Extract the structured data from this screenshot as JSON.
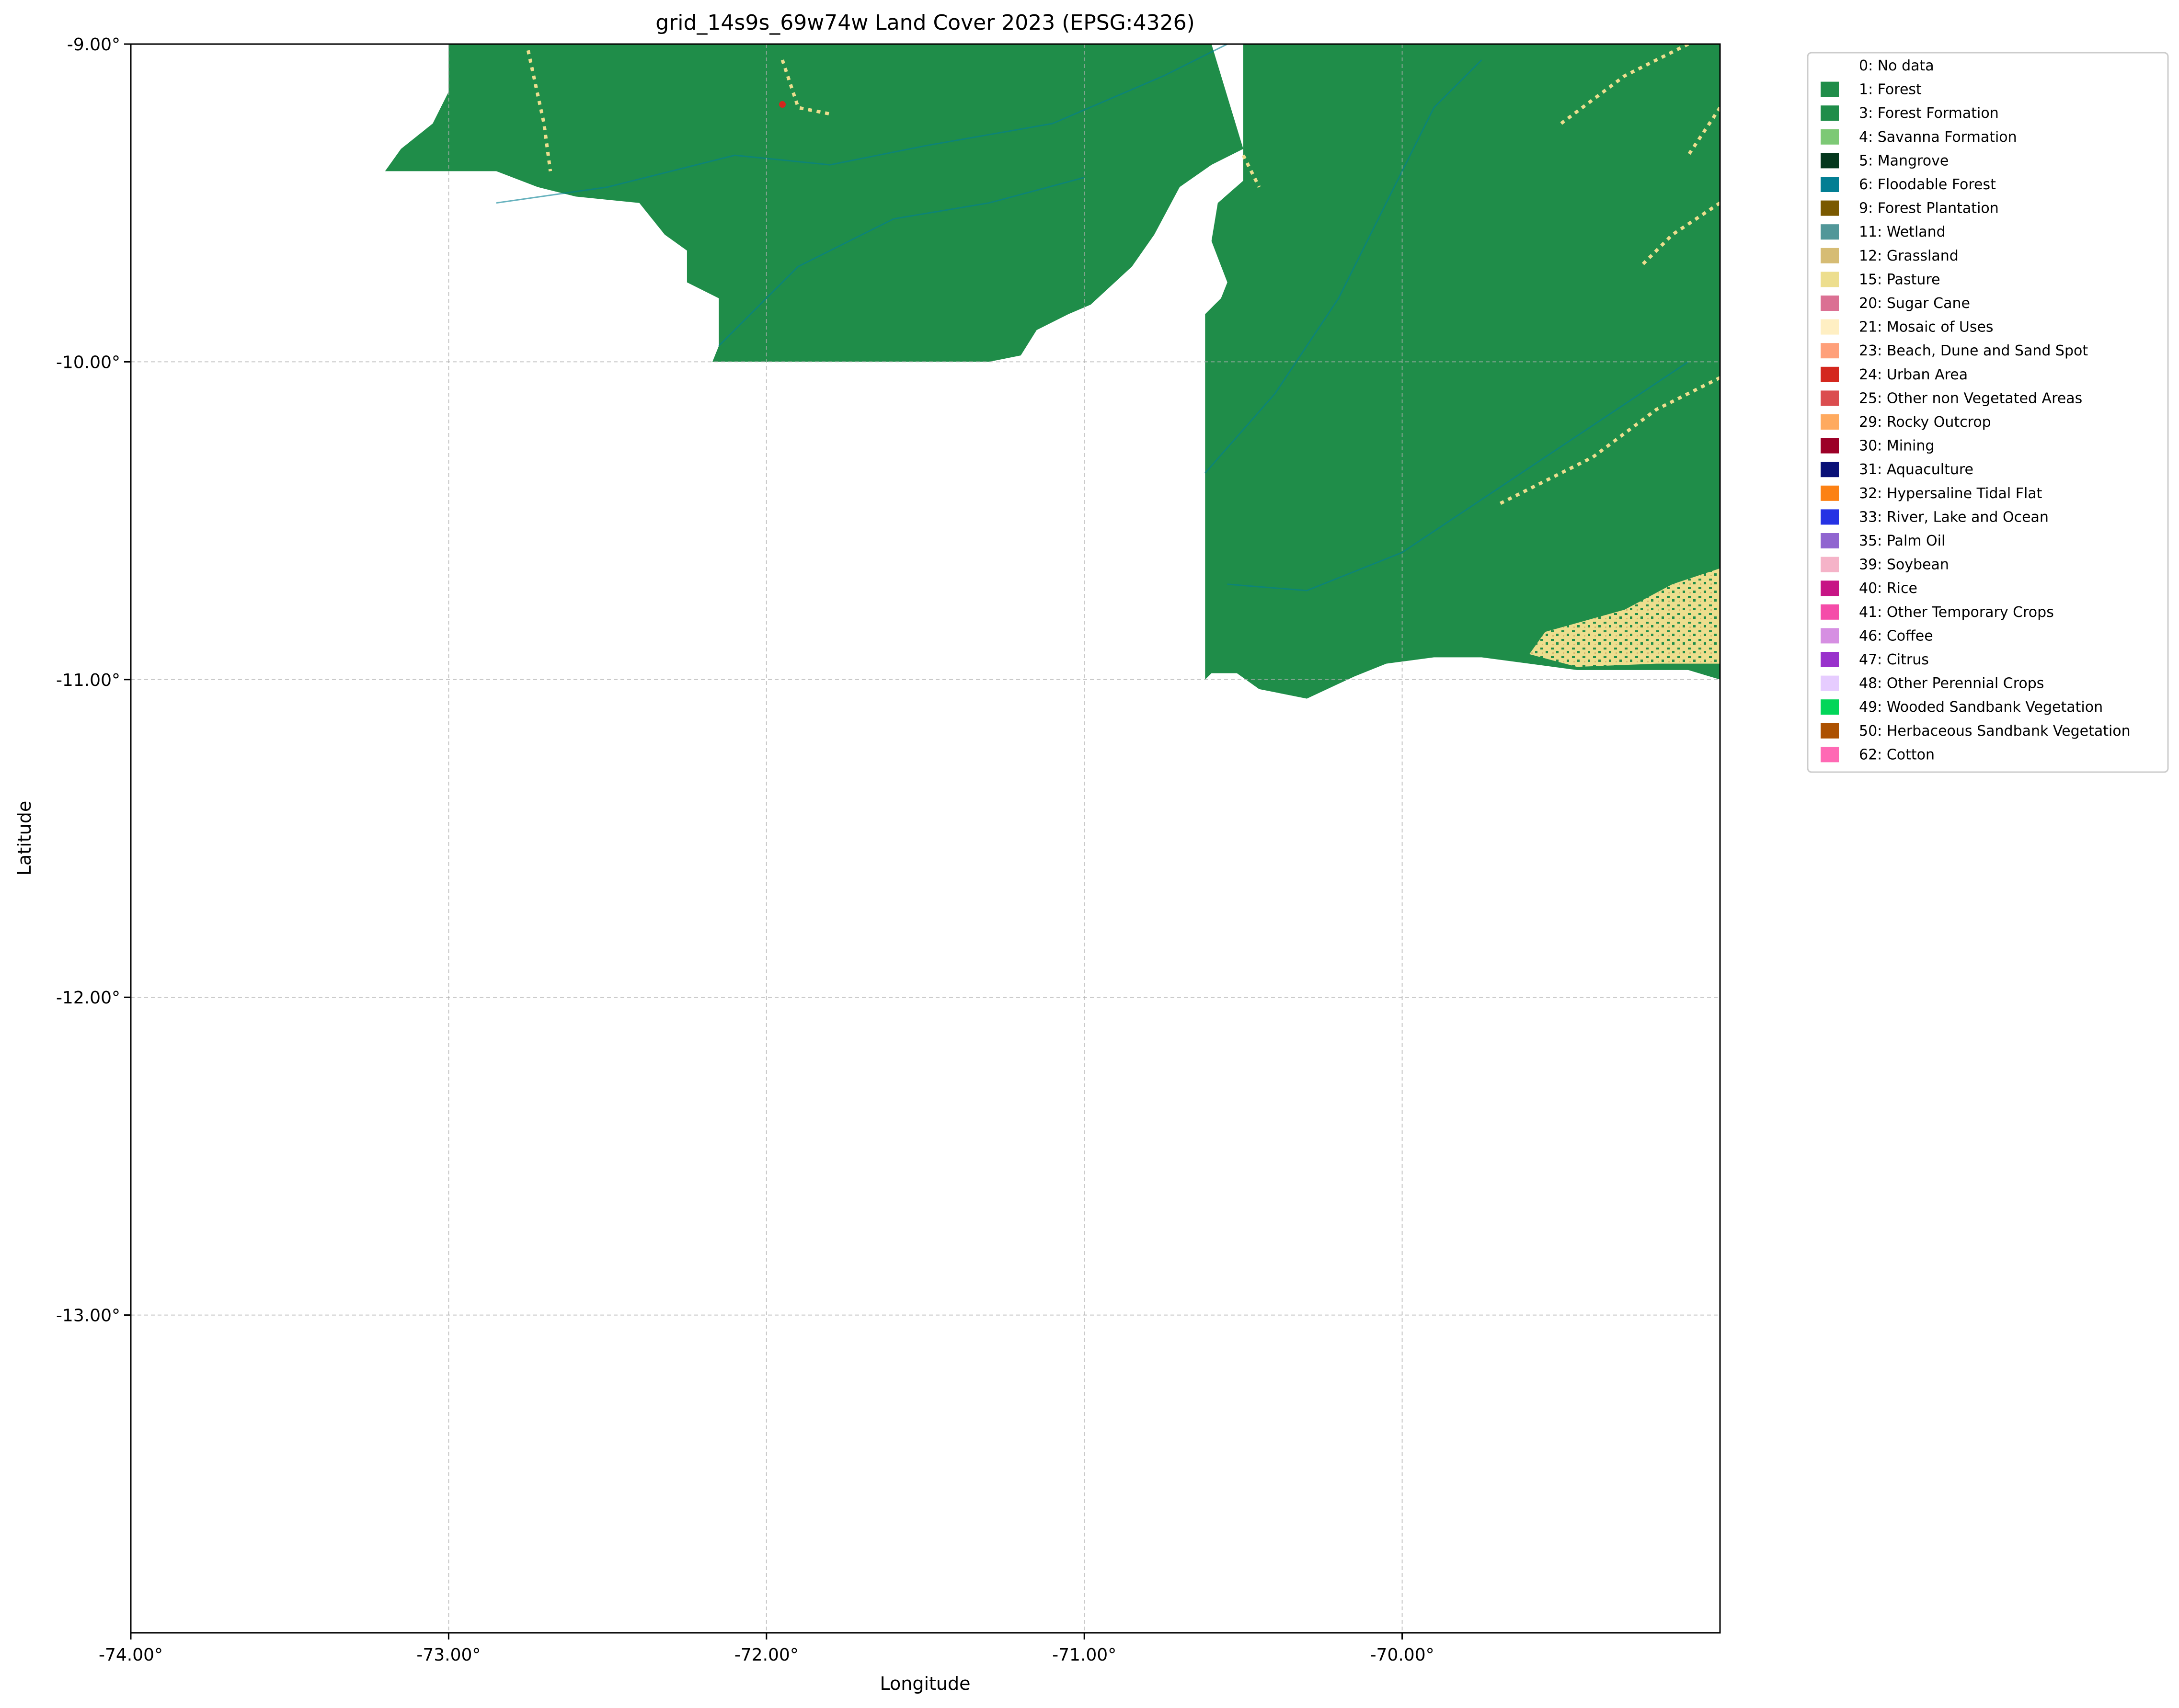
{
  "title": "grid_14s9s_69w74w Land Cover 2023 (EPSG:4326)",
  "axes": {
    "xlabel": "Longitude",
    "ylabel": "Latitude",
    "x_ticks": [
      {
        "value": -74.0,
        "label": "-74.00°"
      },
      {
        "value": -73.0,
        "label": "-73.00°"
      },
      {
        "value": -72.0,
        "label": "-72.00°"
      },
      {
        "value": -71.0,
        "label": "-71.00°"
      },
      {
        "value": -70.0,
        "label": "-70.00°"
      }
    ],
    "y_ticks": [
      {
        "value": -9.0,
        "label": "-9.00°"
      },
      {
        "value": -10.0,
        "label": "-10.00°"
      },
      {
        "value": -11.0,
        "label": "-11.00°"
      },
      {
        "value": -12.0,
        "label": "-12.00°"
      },
      {
        "value": -13.0,
        "label": "-13.00°"
      }
    ],
    "xlim": [
      -74.0,
      -69.0
    ],
    "ylim": [
      -14.0,
      -9.0
    ],
    "grid": true
  },
  "colors": {
    "forest": "#1f8d49",
    "pasture": "#edde8e",
    "grassland": "#d6bc74",
    "river": "#2532e4",
    "floodable": "#027e93",
    "urban": "#d4271e"
  },
  "map_regions": {
    "northwest_forest": [
      [
        -73.2,
        -9.0
      ],
      [
        -72.6,
        -9.0
      ],
      [
        -71.3,
        -9.0
      ],
      [
        -70.6,
        -9.0
      ],
      [
        -70.5,
        -9.33
      ],
      [
        -70.6,
        -9.38
      ],
      [
        -70.7,
        -9.45
      ],
      [
        -70.78,
        -9.6
      ],
      [
        -70.85,
        -9.7
      ],
      [
        -70.98,
        -9.82
      ],
      [
        -71.05,
        -9.85
      ],
      [
        -71.15,
        -9.9
      ],
      [
        -71.2,
        -9.98
      ],
      [
        -71.3,
        -10.0
      ],
      [
        -71.42,
        -10.0
      ],
      [
        -72.17,
        -10.0
      ],
      [
        -72.15,
        -9.95
      ],
      [
        -72.15,
        -9.8
      ],
      [
        -72.25,
        -9.75
      ],
      [
        -72.25,
        -9.65
      ],
      [
        -72.32,
        -9.6
      ],
      [
        -72.4,
        -9.5
      ],
      [
        -72.6,
        -9.48
      ],
      [
        -72.72,
        -9.45
      ],
      [
        -72.85,
        -9.4
      ],
      [
        -73.2,
        -9.4
      ],
      [
        -73.15,
        -9.33
      ],
      [
        -73.05,
        -9.25
      ],
      [
        -73.0,
        -9.15
      ],
      [
        -73.0,
        -9.0
      ]
    ],
    "east_forest": [
      [
        -70.5,
        -9.0
      ],
      [
        -69.0,
        -9.0
      ],
      [
        -69.0,
        -11.0
      ],
      [
        -69.1,
        -10.97
      ],
      [
        -69.25,
        -10.97
      ],
      [
        -69.45,
        -10.97
      ],
      [
        -69.6,
        -10.95
      ],
      [
        -69.75,
        -10.93
      ],
      [
        -69.9,
        -10.93
      ],
      [
        -70.05,
        -10.95
      ],
      [
        -70.15,
        -10.99
      ],
      [
        -70.3,
        -11.06
      ],
      [
        -70.45,
        -11.03
      ],
      [
        -70.52,
        -10.98
      ],
      [
        -70.6,
        -10.98
      ],
      [
        -70.62,
        -11.0
      ],
      [
        -70.62,
        -9.85
      ],
      [
        -70.57,
        -9.8
      ],
      [
        -70.55,
        -9.75
      ],
      [
        -70.6,
        -9.62
      ],
      [
        -70.58,
        -9.5
      ],
      [
        -70.5,
        -9.43
      ],
      [
        -70.5,
        -9.0
      ]
    ],
    "pasture_southeast": [
      [
        -69.55,
        -10.85
      ],
      [
        -69.3,
        -10.78
      ],
      [
        -69.15,
        -10.7
      ],
      [
        -69.0,
        -10.65
      ],
      [
        -69.0,
        -10.95
      ],
      [
        -69.2,
        -10.95
      ],
      [
        -69.45,
        -10.96
      ],
      [
        -69.6,
        -10.92
      ]
    ]
  },
  "legend": [
    {
      "label": "0: No data",
      "color": "#ffffff"
    },
    {
      "label": "1: Forest",
      "color": "#1f8d49"
    },
    {
      "label": "3: Forest Formation",
      "color": "#1f8d49"
    },
    {
      "label": "4: Savanna Formation",
      "color": "#7dc975"
    },
    {
      "label": "5: Mangrove",
      "color": "#04381d"
    },
    {
      "label": "6: Floodable Forest",
      "color": "#027e93"
    },
    {
      "label": "9: Forest Plantation",
      "color": "#7a5900"
    },
    {
      "label": "11: Wetland",
      "color": "#519799"
    },
    {
      "label": "12: Grassland",
      "color": "#d6bc74"
    },
    {
      "label": "15: Pasture",
      "color": "#edde8e"
    },
    {
      "label": "20: Sugar Cane",
      "color": "#db7093"
    },
    {
      "label": "21: Mosaic of Uses",
      "color": "#ffefc3"
    },
    {
      "label": "23: Beach, Dune and Sand Spot",
      "color": "#ffa07a"
    },
    {
      "label": "24: Urban Area",
      "color": "#d4271e"
    },
    {
      "label": "25: Other non Vegetated Areas",
      "color": "#db4d4f"
    },
    {
      "label": "29: Rocky Outcrop",
      "color": "#ffaa5f"
    },
    {
      "label": "30: Mining",
      "color": "#9c0027"
    },
    {
      "label": "31: Aquaculture",
      "color": "#091077"
    },
    {
      "label": "32: Hypersaline Tidal Flat",
      "color": "#fc8114"
    },
    {
      "label": "33: River, Lake and Ocean",
      "color": "#2532e4"
    },
    {
      "label": "35: Palm Oil",
      "color": "#9065d0"
    },
    {
      "label": "39: Soybean",
      "color": "#f5b3c8"
    },
    {
      "label": "40: Rice",
      "color": "#c71585"
    },
    {
      "label": "41: Other Temporary Crops",
      "color": "#f54ca9"
    },
    {
      "label": "46: Coffee",
      "color": "#d68fe2"
    },
    {
      "label": "47: Citrus",
      "color": "#9932cc"
    },
    {
      "label": "48: Other Perennial Crops",
      "color": "#e6ccff"
    },
    {
      "label": "49: Wooded Sandbank Vegetation",
      "color": "#02d659"
    },
    {
      "label": "50: Herbaceous Sandbank Vegetation",
      "color": "#ad5100"
    },
    {
      "label": "62: Cotton",
      "color": "#ff69b4"
    }
  ]
}
